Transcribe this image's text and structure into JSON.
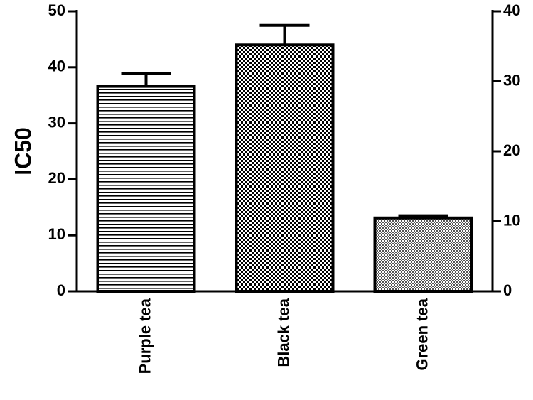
{
  "chart_data": {
    "type": "bar",
    "y_label": "IC50",
    "categories": [
      "Purple tea",
      "Black tea",
      "Green tea"
    ],
    "values": [
      36.6,
      44.0,
      13.1
    ],
    "errors": [
      2.3,
      3.5,
      0.4
    ],
    "ylim": [
      0,
      50
    ],
    "yticks": [
      0,
      10,
      20,
      30,
      40,
      50
    ],
    "y2lim": [
      0,
      40
    ],
    "y2ticks": [
      0,
      10,
      20,
      30,
      40
    ]
  }
}
